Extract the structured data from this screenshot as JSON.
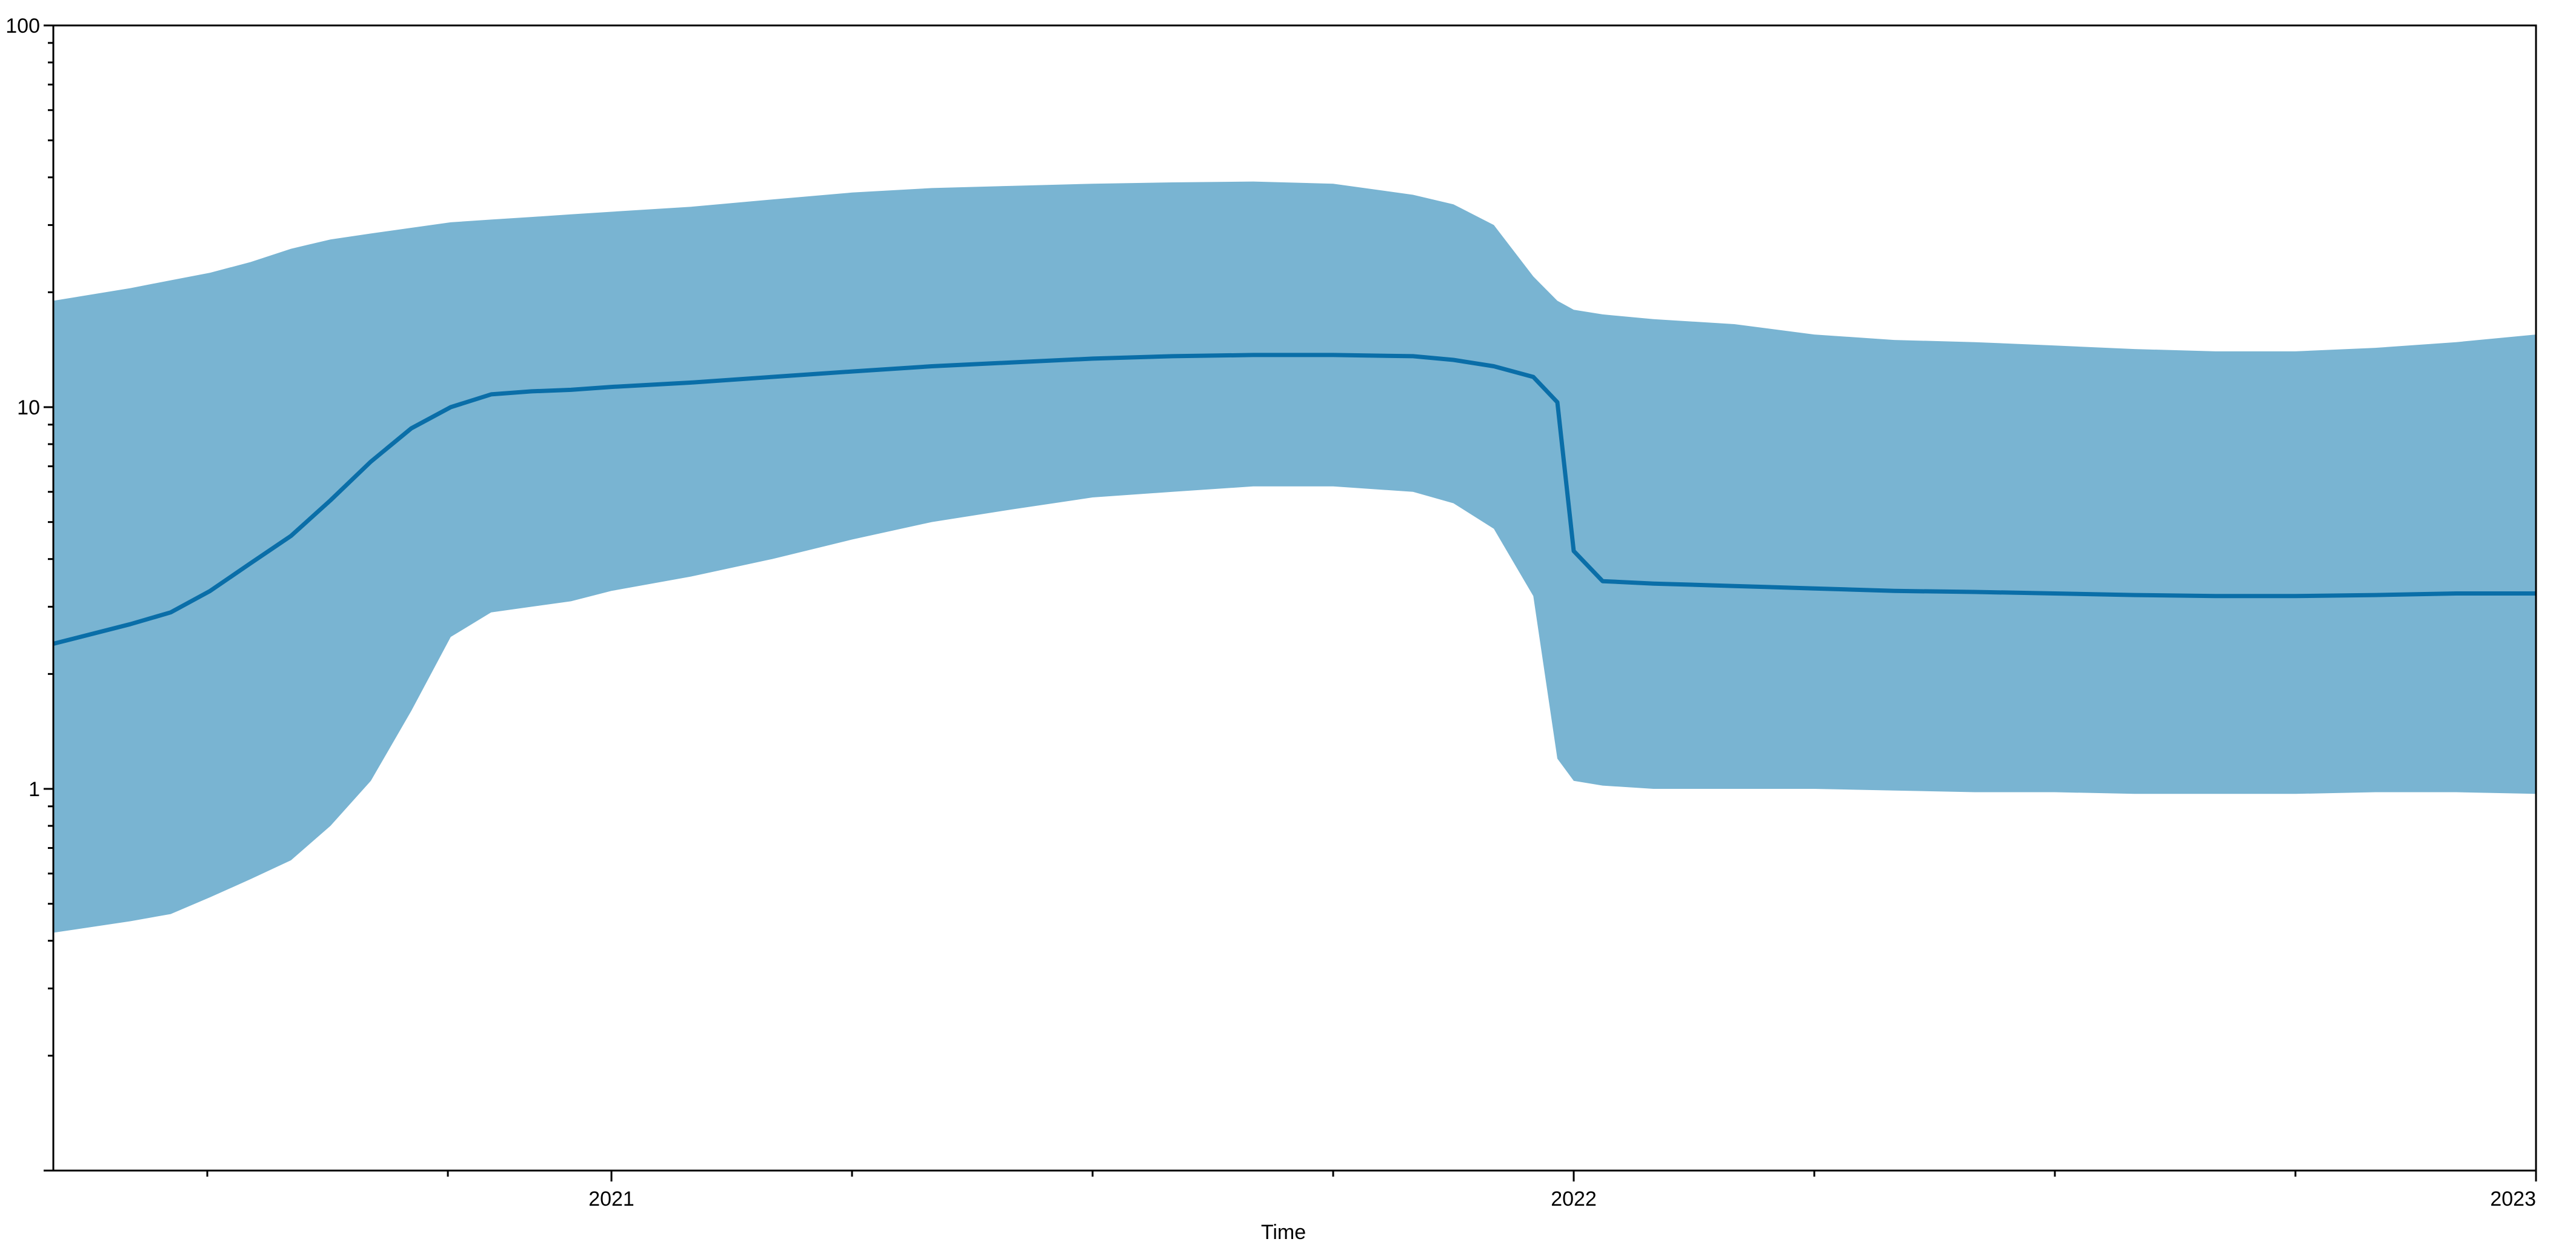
{
  "chart_data": {
    "type": "area",
    "xlabel": "Time",
    "ylabel": "",
    "x_range": [
      2020.42,
      2023.0
    ],
    "ylim": [
      0.1,
      100
    ],
    "y_scale": "log",
    "grid": false,
    "legend": "none",
    "x_ticks": [
      {
        "value": 2021,
        "label": "2021"
      },
      {
        "value": 2022,
        "label": "2022"
      },
      {
        "value": 2023,
        "label": "2023"
      }
    ],
    "x_minor_ticks": [
      2020.58,
      2020.83,
      2021.25,
      2021.5,
      2021.75,
      2022.25,
      2022.5,
      2022.75
    ],
    "y_ticks": [
      {
        "value": 1,
        "label": "1"
      },
      {
        "value": 10,
        "label": "10"
      },
      {
        "value": 100,
        "label": "100"
      }
    ],
    "colors": {
      "band": "#79b4d2",
      "line": "#0a6ea8"
    },
    "series": [
      {
        "kind": "line",
        "x": [
          2020.42,
          2020.5,
          2020.542,
          2020.583,
          2020.625,
          2020.667,
          2020.708,
          2020.75,
          2020.792,
          2020.833,
          2020.875,
          2020.917,
          2020.958,
          2021.0,
          2021.083,
          2021.167,
          2021.25,
          2021.333,
          2021.417,
          2021.5,
          2021.583,
          2021.667,
          2021.75,
          2021.833,
          2021.875,
          2021.917,
          2021.958,
          2021.983,
          2022.0,
          2022.03,
          2022.083,
          2022.167,
          2022.25,
          2022.333,
          2022.417,
          2022.5,
          2022.583,
          2022.667,
          2022.75,
          2022.833,
          2022.917,
          2023.0
        ],
        "values": [
          2.4,
          2.7,
          2.9,
          3.3,
          3.9,
          4.6,
          5.7,
          7.2,
          8.8,
          10.0,
          10.8,
          11.0,
          11.1,
          11.3,
          11.6,
          12.0,
          12.4,
          12.8,
          13.1,
          13.4,
          13.6,
          13.7,
          13.7,
          13.6,
          13.3,
          12.8,
          12.0,
          10.3,
          4.2,
          3.5,
          3.45,
          3.4,
          3.35,
          3.3,
          3.28,
          3.25,
          3.22,
          3.2,
          3.2,
          3.22,
          3.25,
          3.25
        ]
      },
      {
        "kind": "band",
        "x": [
          2020.42,
          2020.5,
          2020.542,
          2020.583,
          2020.625,
          2020.667,
          2020.708,
          2020.75,
          2020.792,
          2020.833,
          2020.875,
          2020.917,
          2020.958,
          2021.0,
          2021.083,
          2021.167,
          2021.25,
          2021.333,
          2021.417,
          2021.5,
          2021.583,
          2021.667,
          2021.75,
          2021.833,
          2021.875,
          2021.917,
          2021.958,
          2021.983,
          2022.0,
          2022.03,
          2022.083,
          2022.167,
          2022.25,
          2022.333,
          2022.417,
          2022.5,
          2022.583,
          2022.667,
          2022.75,
          2022.833,
          2022.917,
          2023.0
        ],
        "upper": [
          19.0,
          20.5,
          21.5,
          22.5,
          24.0,
          26.0,
          27.5,
          28.5,
          29.5,
          30.5,
          31.0,
          31.5,
          32.0,
          32.5,
          33.5,
          35.0,
          36.5,
          37.5,
          38.0,
          38.5,
          38.8,
          39.0,
          38.5,
          36.0,
          34.0,
          30.0,
          22.0,
          19.0,
          18.0,
          17.5,
          17.0,
          16.5,
          15.5,
          15.0,
          14.8,
          14.5,
          14.2,
          14.0,
          14.0,
          14.3,
          14.8,
          15.5
        ],
        "lower": [
          0.42,
          0.45,
          0.47,
          0.52,
          0.58,
          0.65,
          0.8,
          1.05,
          1.6,
          2.5,
          2.9,
          3.0,
          3.1,
          3.3,
          3.6,
          4.0,
          4.5,
          5.0,
          5.4,
          5.8,
          6.0,
          6.2,
          6.2,
          6.0,
          5.6,
          4.8,
          3.2,
          1.2,
          1.05,
          1.02,
          1.0,
          1.0,
          1.0,
          0.99,
          0.98,
          0.98,
          0.97,
          0.97,
          0.97,
          0.98,
          0.98,
          0.97
        ]
      }
    ]
  }
}
